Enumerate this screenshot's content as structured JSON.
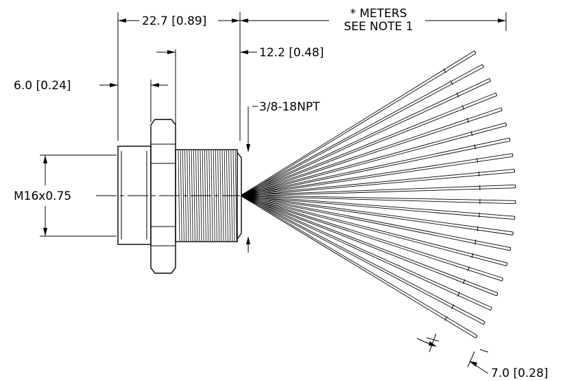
{
  "dimensions": {
    "overall_length": "22.7 [0.89]",
    "lead_length_line1": "* METERS",
    "lead_length_line2": "SEE NOTE 1",
    "thread_length": "12.2 [0.48]",
    "hex_thickness": "6.0 [0.24]",
    "pipe_thread": "3/8-18NPT",
    "nozzle_thread": "M16x0.75",
    "strip_length": "7.0 [0.28]"
  },
  "wire_count": 20
}
